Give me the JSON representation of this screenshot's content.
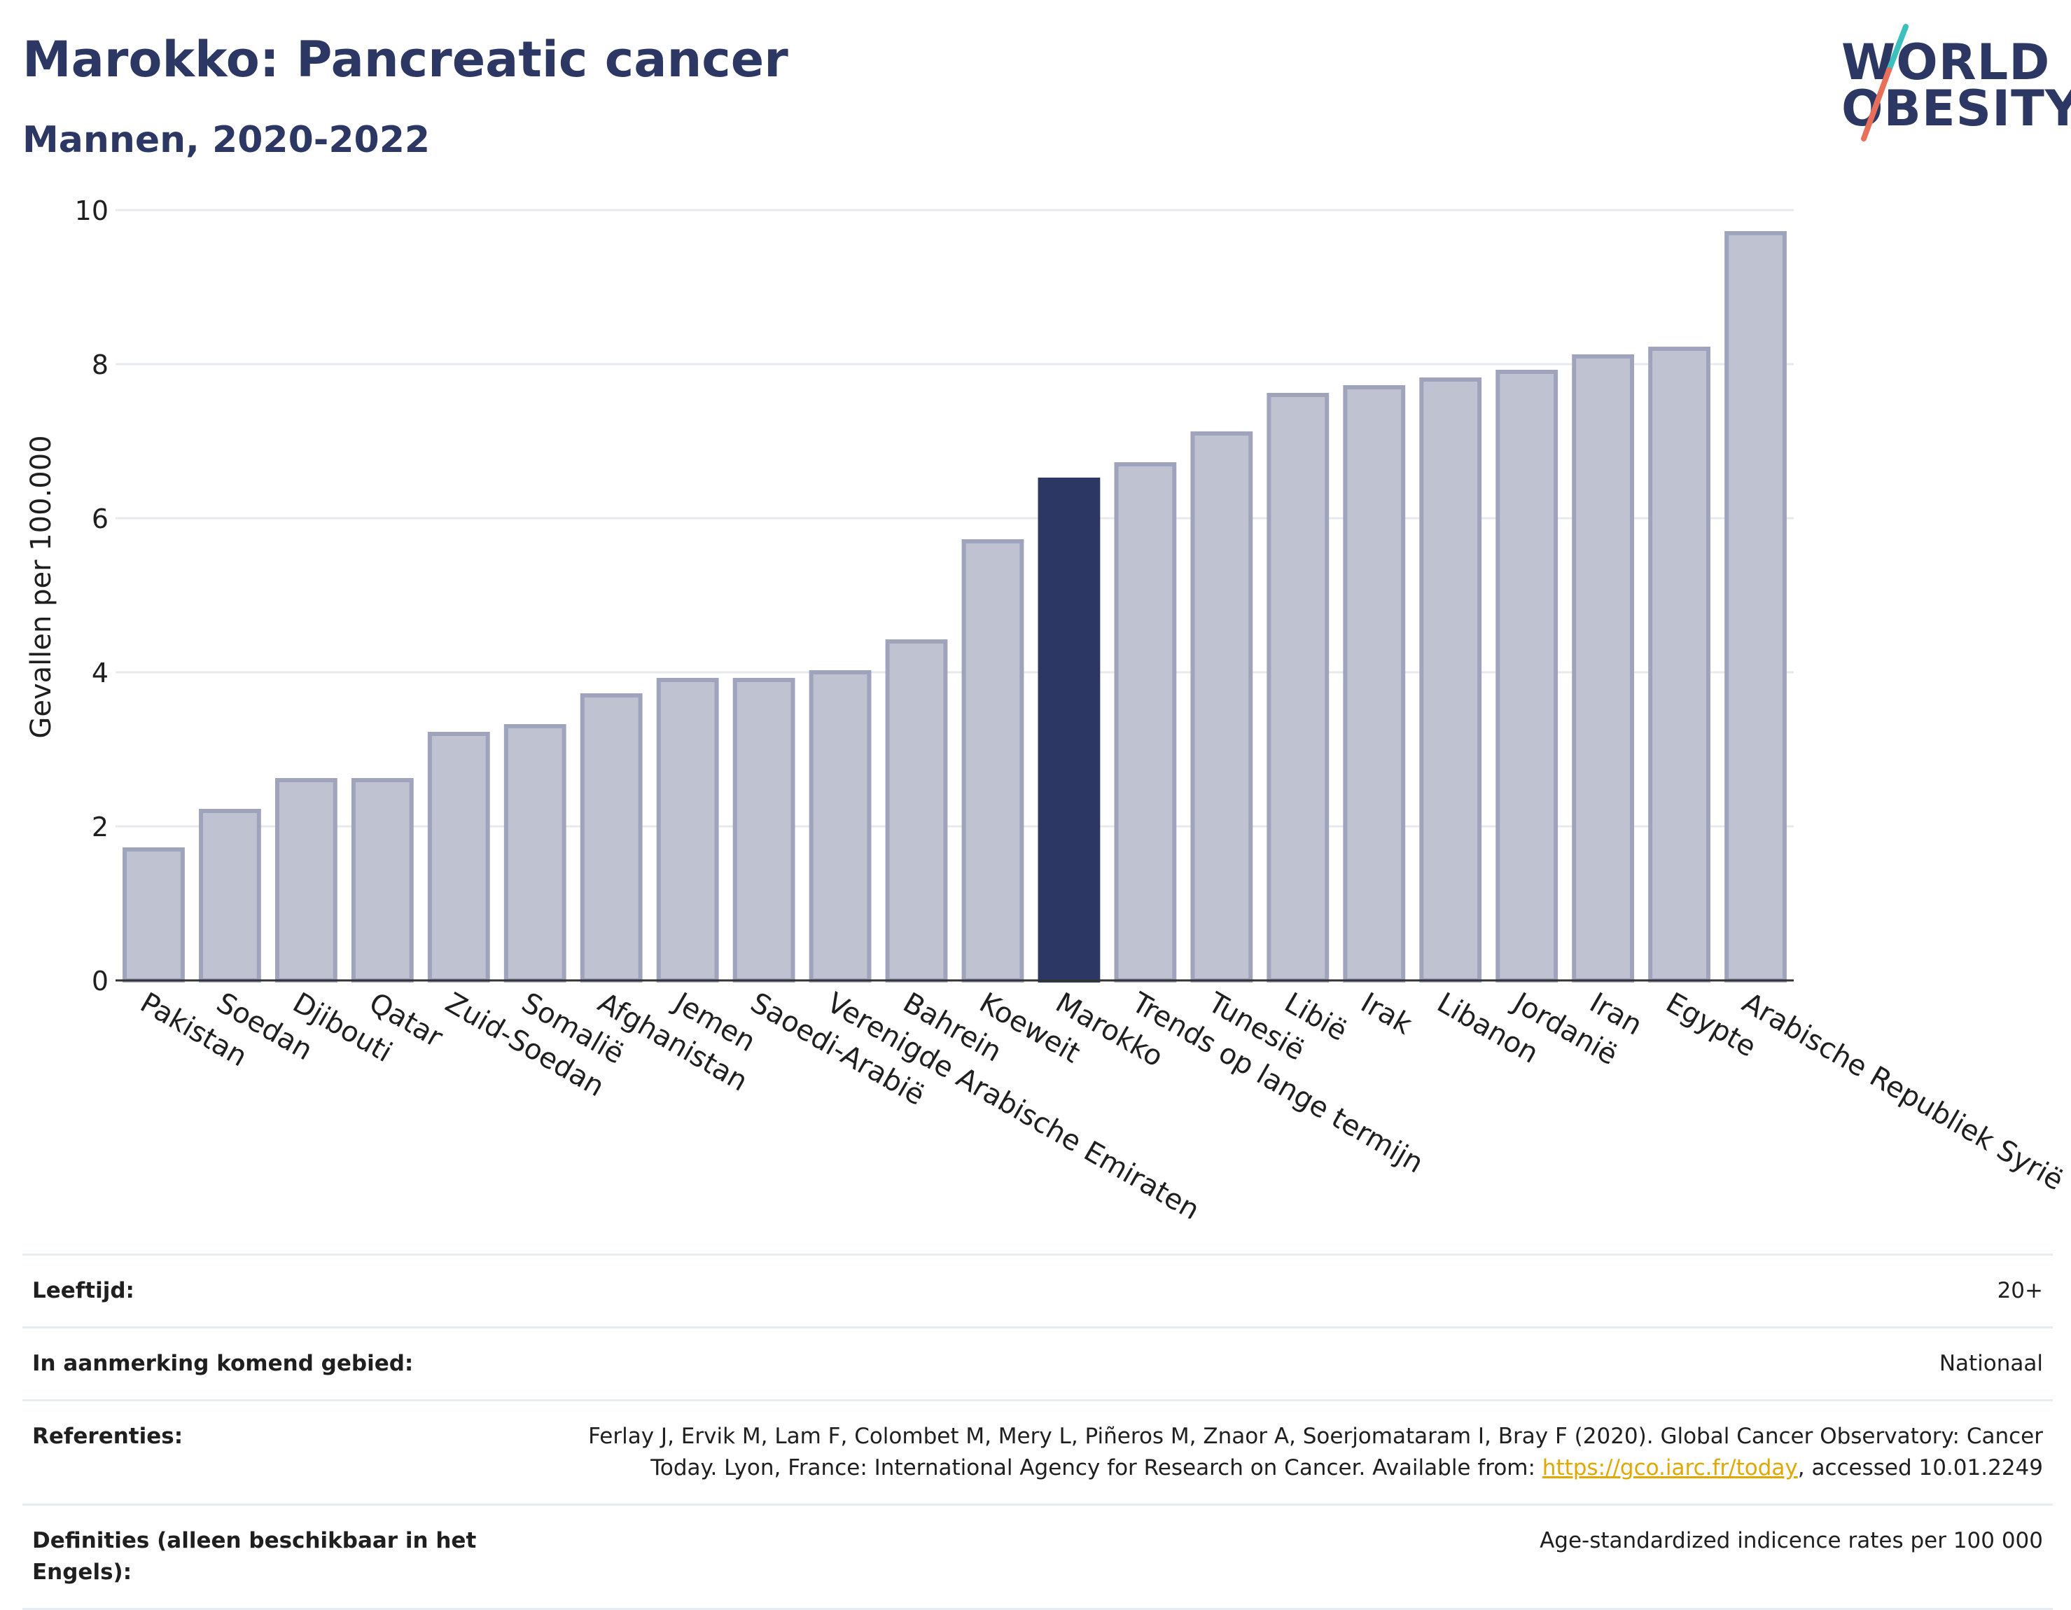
{
  "header": {
    "title": "Marokko: Pancreatic cancer",
    "subtitle": "Mannen, 2020-2022"
  },
  "logo": {
    "line1": "WORLD",
    "line2": "OBESITY",
    "colors": {
      "text": "#2c3863",
      "slash_top": "#3bbfbf",
      "slash_bottom": "#e8705a"
    }
  },
  "chart_data": {
    "type": "bar",
    "ylabel": "Gevallen per 100.000",
    "ylim": [
      0,
      10
    ],
    "yticks": [
      0,
      2,
      4,
      6,
      8,
      10
    ],
    "grid": true,
    "highlight": "Marokko",
    "colors": {
      "bar": "#bfc2d0",
      "bar_stroke": "#9fa4bc",
      "highlight": "#2c3863"
    },
    "categories": [
      "Pakistan",
      "Soedan",
      "Djibouti",
      "Qatar",
      "Zuid-Soedan",
      "Somalië",
      "Afghanistan",
      "Jemen",
      "Saoedi-Arabië",
      "Verenigde Arabische Emiraten",
      "Bahrein",
      "Koeweit",
      "Marokko",
      "Trends op lange termijn",
      "Tunesië",
      "Libië",
      "Irak",
      "Libanon",
      "Jordanië",
      "Iran",
      "Egypte",
      "Arabische Republiek Syrië"
    ],
    "values": [
      1.7,
      2.2,
      2.6,
      2.6,
      3.2,
      3.3,
      3.7,
      3.9,
      3.9,
      4.0,
      4.4,
      5.7,
      6.5,
      6.7,
      7.1,
      7.6,
      7.7,
      7.8,
      7.9,
      8.1,
      8.2,
      9.7
    ]
  },
  "info": {
    "age_label": "Leeftijd:",
    "age_value": "20+",
    "area_label": "In aanmerking komend gebied:",
    "area_value": "Nationaal",
    "ref_label": "Referenties:",
    "ref_text_before": "Ferlay J, Ervik M, Lam F, Colombet M, Mery L, Piñeros M, Znaor A, Soerjomataram I, Bray F (2020). Global Cancer Observatory: Cancer Today. Lyon, France: International Agency for Research on Cancer. Available from: ",
    "ref_link": "https://gco.iarc.fr/today",
    "ref_text_after": ", accessed 10.01.2249",
    "def_label": "Definities (alleen beschikbaar in het Engels):",
    "def_value": "Age-standardized indicence rates per 100 000"
  }
}
